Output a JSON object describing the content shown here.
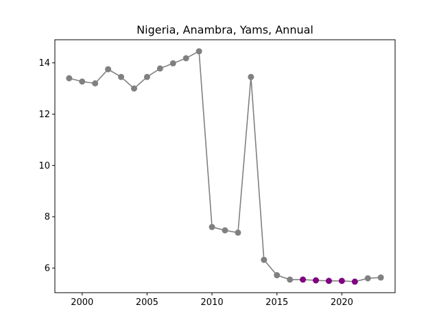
{
  "chart_data": {
    "type": "line",
    "title": "Nigeria, Anambra, Yams, Annual",
    "xlabel": "",
    "ylabel": "",
    "xlim": [
      1997.9,
      2024.1
    ],
    "ylim": [
      5.04,
      14.9
    ],
    "x_ticks": [
      2000,
      2005,
      2010,
      2015,
      2020
    ],
    "y_ticks": [
      6,
      8,
      10,
      12,
      14
    ],
    "grid": false,
    "line_color": "#808080",
    "marker_color": "#808080",
    "highlight_color": "#800080",
    "series": [
      {
        "x": [
          1999,
          2000,
          2001,
          2002,
          2003,
          2004,
          2005,
          2006,
          2007,
          2008,
          2009,
          2010,
          2011,
          2012,
          2013,
          2014,
          2015,
          2016,
          2017,
          2018,
          2019,
          2020,
          2021,
          2022,
          2023
        ],
        "values": [
          13.4,
          13.27,
          13.2,
          13.75,
          13.45,
          13.0,
          13.45,
          13.78,
          13.98,
          14.18,
          14.45,
          7.6,
          7.47,
          7.38,
          13.45,
          6.32,
          5.72,
          5.55,
          5.55,
          5.52,
          5.5,
          5.5,
          5.47,
          5.6,
          5.63
        ],
        "highlighted_x": [
          2017,
          2018,
          2019,
          2020,
          2021
        ]
      }
    ]
  }
}
